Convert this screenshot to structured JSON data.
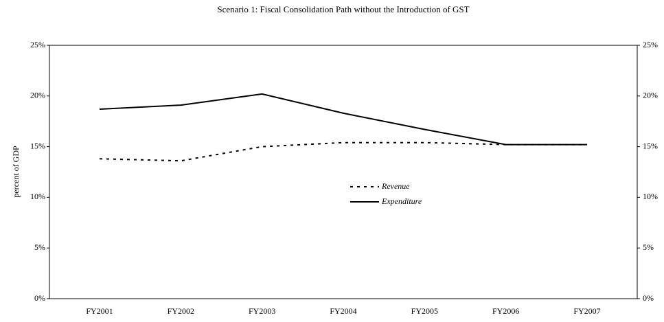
{
  "chart_data": {
    "type": "line",
    "title": "Scenario 1: Fiscal Consolidation Path without the Introduction of GST",
    "y_label": "percent of GDP",
    "categories": [
      "FY2001",
      "FY2002",
      "FY2003",
      "FY2004",
      "FY2005",
      "FY2006",
      "FY2007"
    ],
    "series": [
      {
        "name": "Revenue",
        "color": "#000000",
        "dash": true,
        "values": [
          13.8,
          13.6,
          15.0,
          15.4,
          15.4,
          15.2,
          15.2
        ]
      },
      {
        "name": "Expenditure",
        "color": "#000000",
        "dash": false,
        "values": [
          18.7,
          19.1,
          20.2,
          18.3,
          16.7,
          15.2,
          15.2
        ]
      }
    ],
    "ylim": [
      0,
      25
    ],
    "yticks": [
      {
        "value": 0,
        "label": "0%"
      },
      {
        "value": 5,
        "label": "5%"
      },
      {
        "value": 10,
        "label": "10%"
      },
      {
        "value": 15,
        "label": "15%"
      },
      {
        "value": 20,
        "label": "20%"
      },
      {
        "value": 25,
        "label": "25%"
      }
    ],
    "y2lim": [
      0,
      25
    ],
    "y2ticks": [
      {
        "value": 0,
        "label": "0%"
      },
      {
        "value": 5,
        "label": "5%"
      },
      {
        "value": 10,
        "label": "10%"
      },
      {
        "value": 15,
        "label": "15%"
      },
      {
        "value": 20,
        "label": "20%"
      },
      {
        "value": 25,
        "label": "25%"
      }
    ],
    "legend": "center"
  }
}
